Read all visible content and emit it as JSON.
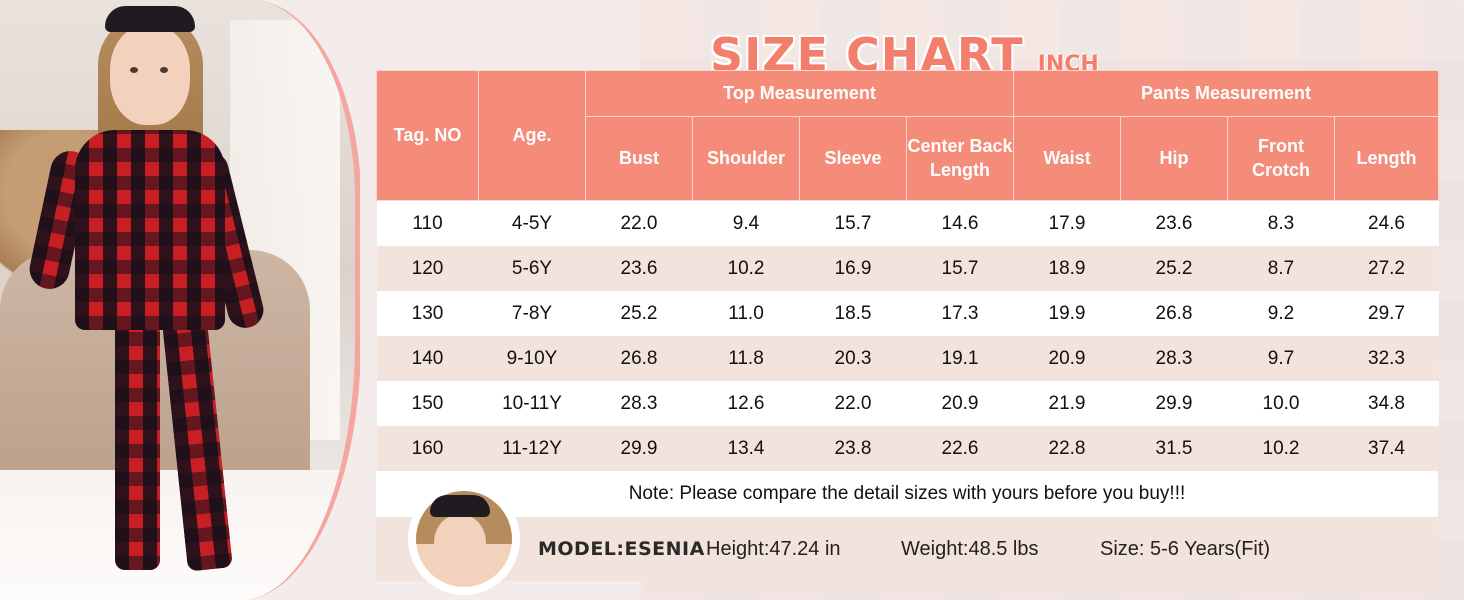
{
  "title": {
    "main": "SIZE CHART",
    "unit": "INCH"
  },
  "table": {
    "headers": {
      "tag": "Tag. NO",
      "age": "Age.",
      "top_group": "Top Measurement",
      "pants_group": "Pants Measurement",
      "bust": "Bust",
      "shoulder": "Shoulder",
      "sleeve": "Sleeve",
      "center_back_length": "Center Back Length",
      "waist": "Waist",
      "hip": "Hip",
      "front_crotch": "Front Crotch",
      "length": "Length"
    },
    "rows": [
      [
        "110",
        "4-5Y",
        "22.0",
        "9.4",
        "15.7",
        "14.6",
        "17.9",
        "23.6",
        "8.3",
        "24.6"
      ],
      [
        "120",
        "5-6Y",
        "23.6",
        "10.2",
        "16.9",
        "15.7",
        "18.9",
        "25.2",
        "8.7",
        "27.2"
      ],
      [
        "130",
        "7-8Y",
        "25.2",
        "11.0",
        "18.5",
        "17.3",
        "19.9",
        "26.8",
        "9.2",
        "29.7"
      ],
      [
        "140",
        "9-10Y",
        "26.8",
        "11.8",
        "20.3",
        "19.1",
        "20.9",
        "28.3",
        "9.7",
        "32.3"
      ],
      [
        "150",
        "10-11Y",
        "28.3",
        "12.6",
        "22.0",
        "20.9",
        "21.9",
        "29.9",
        "10.0",
        "34.8"
      ],
      [
        "160",
        "11-12Y",
        "29.9",
        "13.4",
        "23.8",
        "22.6",
        "22.8",
        "31.5",
        "10.2",
        "37.4"
      ]
    ]
  },
  "note": "Note: Please compare the detail sizes with yours before you buy!!!",
  "model": {
    "name": "MODEL:ESENIA",
    "height": "Height:47.24 in",
    "weight": "Weight:48.5 lbs",
    "size": "Size: 5-6 Years(Fit)"
  },
  "colors": {
    "accent": "#f48c79",
    "title": "#f47e6c",
    "row_alt": "#f2e3dc",
    "plaid_red": "#c81f25"
  }
}
